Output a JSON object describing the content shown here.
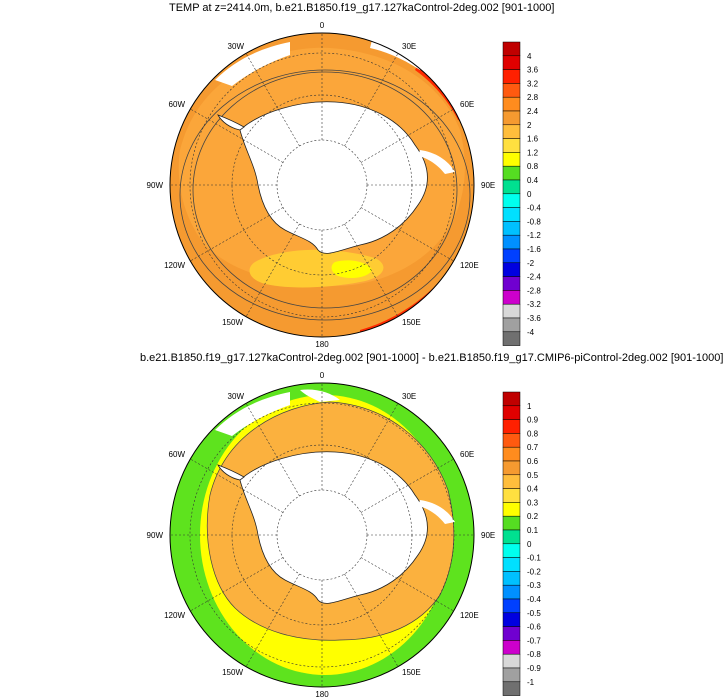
{
  "panel1": {
    "title": "TEMP at z=2414.0m, b.e21.B1850.f19_g17.127kaControl-2deg.002 [901-1000]",
    "lon_labels": {
      "top": "0",
      "top_right": "30E",
      "right_upper": "60E",
      "right": "90E",
      "right_lower": "120E",
      "bottom_right": "150E",
      "bottom": "180",
      "bottom_left": "150W",
      "left_lower": "120W",
      "left": "90W",
      "left_upper": "60W",
      "top_left": "30W"
    },
    "colorbar": {
      "labels": [
        "4",
        "3.6",
        "3.2",
        "2.8",
        "2.4",
        "2",
        "1.6",
        "1.2",
        "0.8",
        "0.4",
        "0",
        "-0.4",
        "-0.8",
        "-1.2",
        "-1.6",
        "-2",
        "-2.4",
        "-2.8",
        "-3.2",
        "-3.6",
        "-4"
      ],
      "colors": [
        "#c00000",
        "#e00000",
        "#ff2000",
        "#ff5a10",
        "#ff8c1e",
        "#f59a30",
        "#ffbe3c",
        "#ffe040",
        "#ffff00",
        "#55dd22",
        "#00e090",
        "#00ffee",
        "#00e0ff",
        "#00c0ff",
        "#0090ff",
        "#0040ff",
        "#0000e0",
        "#7000d0",
        "#cc00cc",
        "#d8d8d8",
        "#a0a0a0",
        "#707070"
      ]
    }
  },
  "panel2": {
    "title": "b.e21.B1850.f19_g17.127kaControl-2deg.002 [901-1000] - b.e21.B1850.f19_g17.CMIP6-piControl-2deg.002 [901-1000]",
    "lon_labels": {
      "top": "0",
      "top_right": "30E",
      "right_upper": "60E",
      "right": "90E",
      "right_lower": "120E",
      "bottom_right": "150E",
      "bottom": "180",
      "bottom_left": "150W",
      "left_lower": "120W",
      "left": "90W",
      "left_upper": "60W",
      "top_left": "30W"
    },
    "colorbar": {
      "labels": [
        "1",
        "0.9",
        "0.8",
        "0.7",
        "0.6",
        "0.5",
        "0.4",
        "0.3",
        "0.2",
        "0.1",
        "0",
        "-0.1",
        "-0.2",
        "-0.3",
        "-0.4",
        "-0.5",
        "-0.6",
        "-0.7",
        "-0.8",
        "-0.9",
        "-1"
      ],
      "colors": [
        "#c00000",
        "#e00000",
        "#ff2000",
        "#ff5a10",
        "#ff8c1e",
        "#f59a30",
        "#ffbe3c",
        "#ffe040",
        "#ffff00",
        "#55dd22",
        "#00e090",
        "#00ffee",
        "#00e0ff",
        "#00c0ff",
        "#0090ff",
        "#0040ff",
        "#0000e0",
        "#7000d0",
        "#cc00cc",
        "#d8d8d8",
        "#a0a0a0",
        "#707070"
      ]
    }
  },
  "colors": {
    "orange": "#f59a30",
    "light_orange": "#fbb13e",
    "yellow_orange": "#ffcc33",
    "yellow": "#ffff00",
    "red": "#ff2a00",
    "dark_red": "#e00000",
    "green": "#5ee31e",
    "land": "#ffffff"
  }
}
